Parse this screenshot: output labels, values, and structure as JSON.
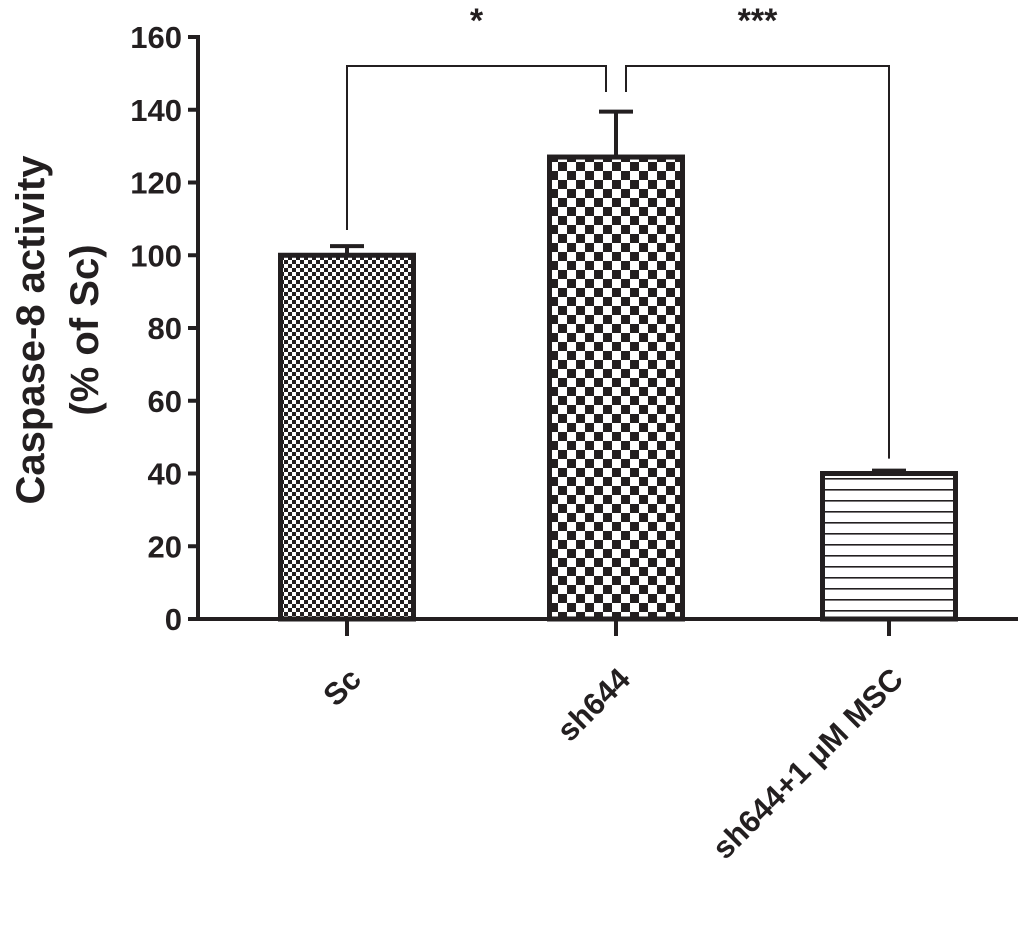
{
  "chart_data": {
    "type": "bar",
    "title": "",
    "xlabel": "",
    "ylabel_lines": [
      "Caspase-8 activity",
      "(% of Sc)"
    ],
    "ylim": [
      0,
      160
    ],
    "yticks": [
      0,
      20,
      40,
      60,
      80,
      100,
      120,
      140,
      160
    ],
    "ytick_labels": [
      "0",
      "20",
      "40",
      "60",
      "80",
      "100",
      "120",
      "140",
      "160"
    ],
    "categories": [
      "Sc",
      "sh644",
      "sh644+1 μM MSC"
    ],
    "values": [
      100,
      127,
      40
    ],
    "errors": [
      2.5,
      12.5,
      0.8
    ],
    "patterns": [
      "fine-checker",
      "coarse-checker",
      "horizontal-lines"
    ],
    "bar_color": "#231f20",
    "significance": [
      {
        "from": 0,
        "to": 1,
        "label": "*"
      },
      {
        "from": 1,
        "to": 2,
        "label": "***"
      }
    ],
    "grid": false,
    "legend": "none"
  }
}
